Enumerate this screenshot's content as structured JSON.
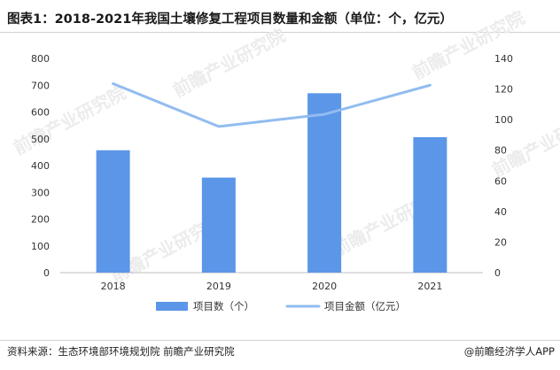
{
  "title": "图表1：2018-2021年我国土壤修复工程项目数量和金额（单位：个，亿元）",
  "source": "资料来源：生态环境部环境规划院 前瞻产业研究院",
  "brand": "@前瞻经济学人APP",
  "watermark": "前瞻产业研究院",
  "colors": {
    "bar": "#5b96e8",
    "line": "#92bcf0"
  },
  "chart_data": {
    "type": "bar",
    "categories": [
      "2018",
      "2019",
      "2020",
      "2021"
    ],
    "series": [
      {
        "name": "项目数（个）",
        "type": "bar",
        "axis": "left",
        "values": [
          457,
          355,
          670,
          506
        ]
      },
      {
        "name": "项目金额（亿元）",
        "type": "line",
        "axis": "right",
        "values": [
          123.5,
          95.5,
          103.5,
          122.5
        ]
      }
    ],
    "ylim_left": [
      0,
      800
    ],
    "yticks_left": [
      0,
      100,
      200,
      300,
      400,
      500,
      600,
      700,
      800
    ],
    "ylim_right": [
      0,
      140
    ],
    "yticks_right": [
      0,
      20,
      40,
      60,
      80,
      100,
      120,
      140
    ],
    "grid": false,
    "legend_position": "bottom"
  }
}
